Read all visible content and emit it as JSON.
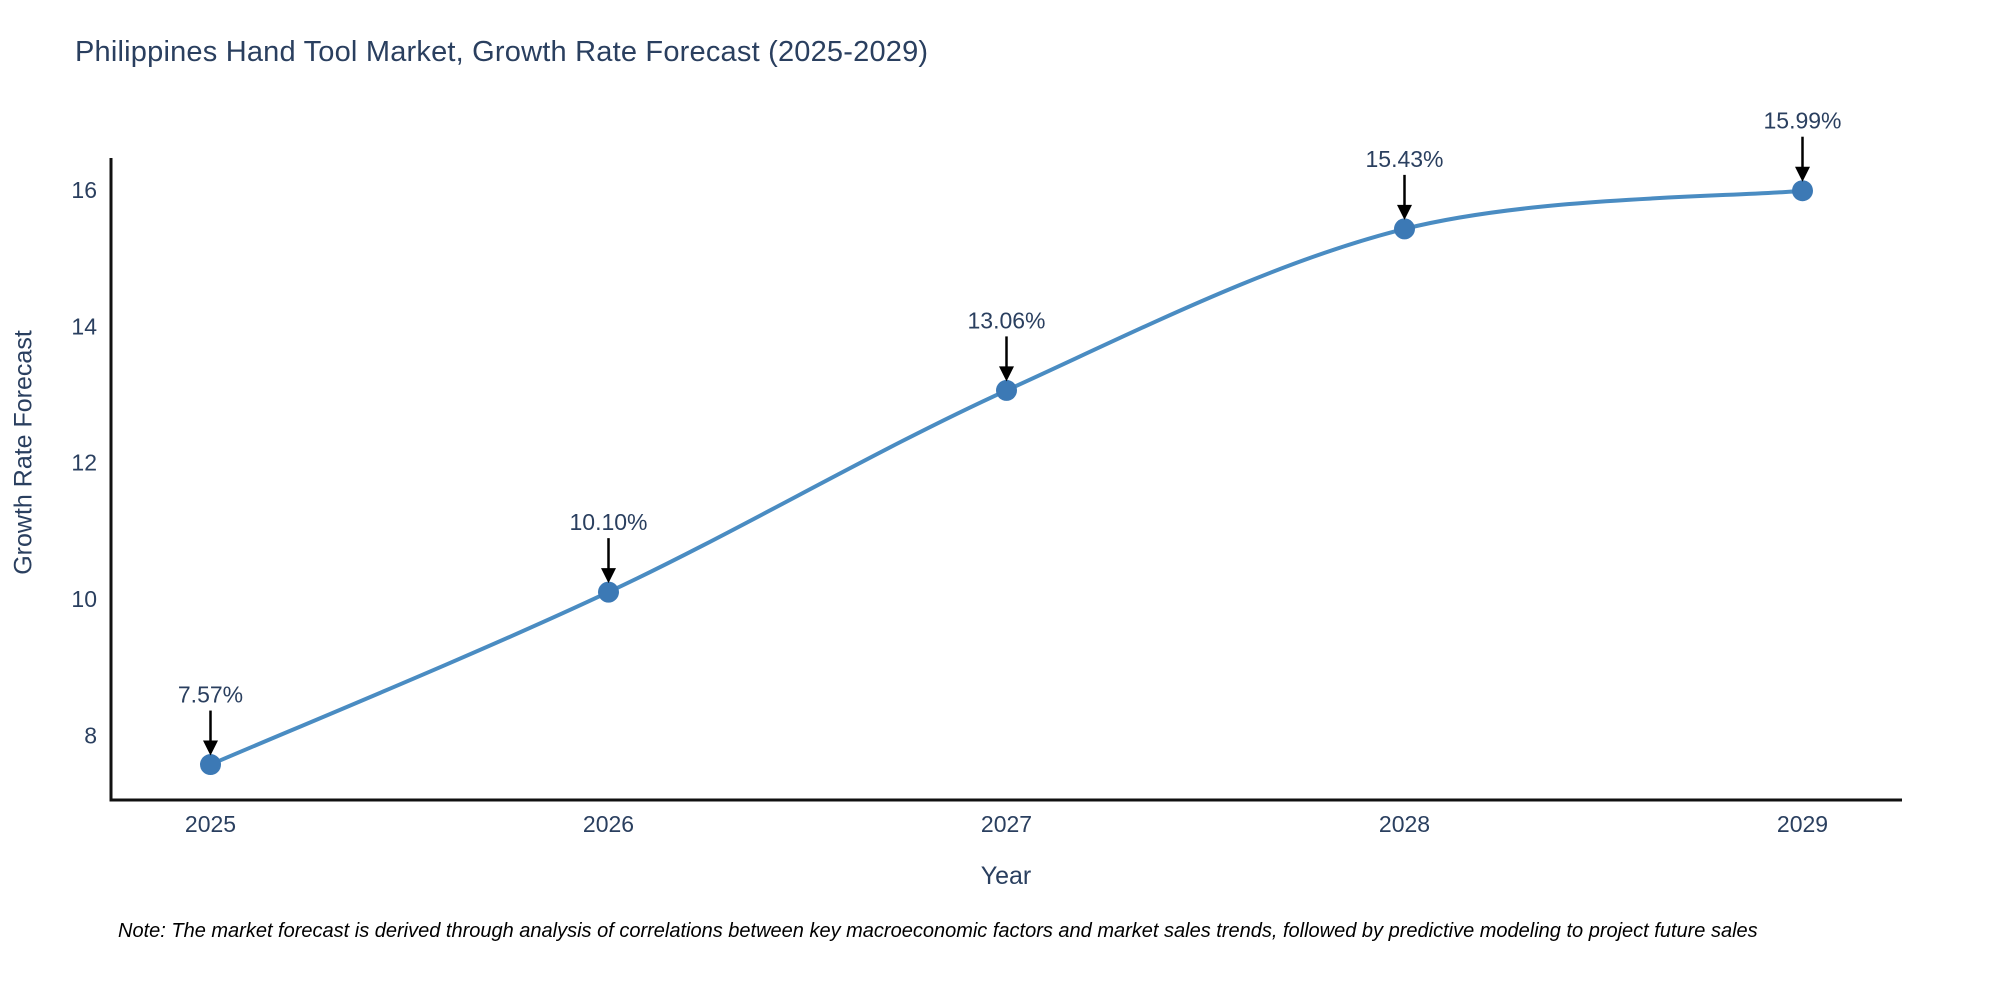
{
  "title": "Philippines Hand Tool Market, Growth Rate Forecast (2025-2029)",
  "footnote": "Note: The market forecast is derived through analysis of correlations between key macroeconomic factors and market sales trends, followed by predictive modeling to project future sales",
  "chart_data": {
    "type": "line",
    "title": "Philippines Hand Tool Market, Growth Rate Forecast (2025-2029)",
    "xlabel": "Year",
    "ylabel": "Growth Rate Forecast",
    "categories": [
      "2025",
      "2026",
      "2027",
      "2028",
      "2029"
    ],
    "x": [
      2025,
      2026,
      2027,
      2028,
      2029
    ],
    "series": [
      {
        "name": "Growth Rate Forecast",
        "values": [
          7.57,
          10.1,
          13.06,
          15.43,
          15.99
        ]
      }
    ],
    "point_labels": [
      "7.57%",
      "10.10%",
      "13.06%",
      "15.43%",
      "15.99%"
    ],
    "yticks": [
      8,
      10,
      12,
      14,
      16
    ],
    "ylim": [
      7.05,
      16.47
    ],
    "xlim": [
      2024.75,
      2029.25
    ],
    "grid": false,
    "legend": "none",
    "line_shape": "spline",
    "colors": {
      "line": "#4a8cc2",
      "marker": "#3c79b5",
      "axis_line": "#111111",
      "text": "#2a3f5f",
      "annotation_arrow": "#000000",
      "background": "#ffffff"
    }
  }
}
